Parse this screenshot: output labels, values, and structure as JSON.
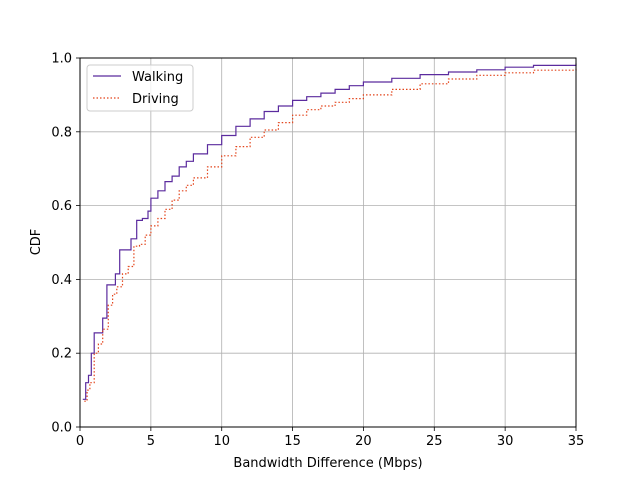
{
  "chart_data": {
    "type": "line",
    "xlabel": "Bandwidth Difference (Mbps)",
    "ylabel": "CDF",
    "xlim": [
      0,
      35
    ],
    "ylim": [
      0,
      1
    ],
    "xticks": [
      0,
      5,
      10,
      15,
      20,
      25,
      30,
      35
    ],
    "xtick_labels": [
      "0",
      "5",
      "10",
      "15",
      "20",
      "25",
      "30",
      "35"
    ],
    "yticks": [
      0,
      0.2,
      0.4,
      0.6,
      0.8,
      1.0
    ],
    "ytick_labels": [
      "0.0",
      "0.2",
      "0.4",
      "0.6",
      "0.8",
      "1.0"
    ],
    "grid": true,
    "legend": "top-left",
    "series": [
      {
        "name": "Walking",
        "color": "#5b2b9e",
        "style": "solid",
        "x": [
          0.2,
          0.4,
          0.6,
          0.8,
          1.0,
          1.3,
          1.6,
          1.9,
          2.2,
          2.5,
          2.8,
          3.2,
          3.6,
          4.0,
          4.4,
          4.8,
          5.0,
          5.5,
          6.0,
          6.5,
          7.0,
          7.5,
          8.0,
          9.0,
          10.0,
          11.0,
          12.0,
          13.0,
          14.0,
          15.0,
          16.0,
          17.0,
          18.0,
          19.0,
          20.0,
          22.0,
          24.0,
          26.0,
          28.0,
          30.0,
          32.0,
          35.0
        ],
        "y": [
          0.075,
          0.12,
          0.14,
          0.2,
          0.255,
          0.255,
          0.295,
          0.385,
          0.385,
          0.415,
          0.48,
          0.48,
          0.51,
          0.56,
          0.565,
          0.585,
          0.62,
          0.64,
          0.665,
          0.68,
          0.705,
          0.72,
          0.74,
          0.765,
          0.79,
          0.815,
          0.835,
          0.855,
          0.87,
          0.885,
          0.895,
          0.905,
          0.915,
          0.925,
          0.935,
          0.945,
          0.955,
          0.962,
          0.968,
          0.975,
          0.98,
          0.985
        ]
      },
      {
        "name": "Driving",
        "color": "#e3441b",
        "style": "dotted",
        "x": [
          0.3,
          0.5,
          0.7,
          1.0,
          1.3,
          1.6,
          2.0,
          2.3,
          2.6,
          3.0,
          3.4,
          3.8,
          4.2,
          4.6,
          5.0,
          5.5,
          6.0,
          6.5,
          7.0,
          7.5,
          8.0,
          9.0,
          10.0,
          11.0,
          12.0,
          13.0,
          14.0,
          15.0,
          16.0,
          17.0,
          18.0,
          19.0,
          20.0,
          22.0,
          24.0,
          26.0,
          28.0,
          30.0,
          32.0,
          35.0
        ],
        "y": [
          0.07,
          0.1,
          0.12,
          0.2,
          0.225,
          0.265,
          0.33,
          0.36,
          0.38,
          0.415,
          0.435,
          0.49,
          0.495,
          0.52,
          0.545,
          0.565,
          0.59,
          0.615,
          0.64,
          0.655,
          0.675,
          0.705,
          0.735,
          0.76,
          0.785,
          0.805,
          0.825,
          0.845,
          0.86,
          0.87,
          0.88,
          0.89,
          0.9,
          0.915,
          0.93,
          0.943,
          0.953,
          0.96,
          0.967,
          0.973
        ]
      }
    ]
  }
}
